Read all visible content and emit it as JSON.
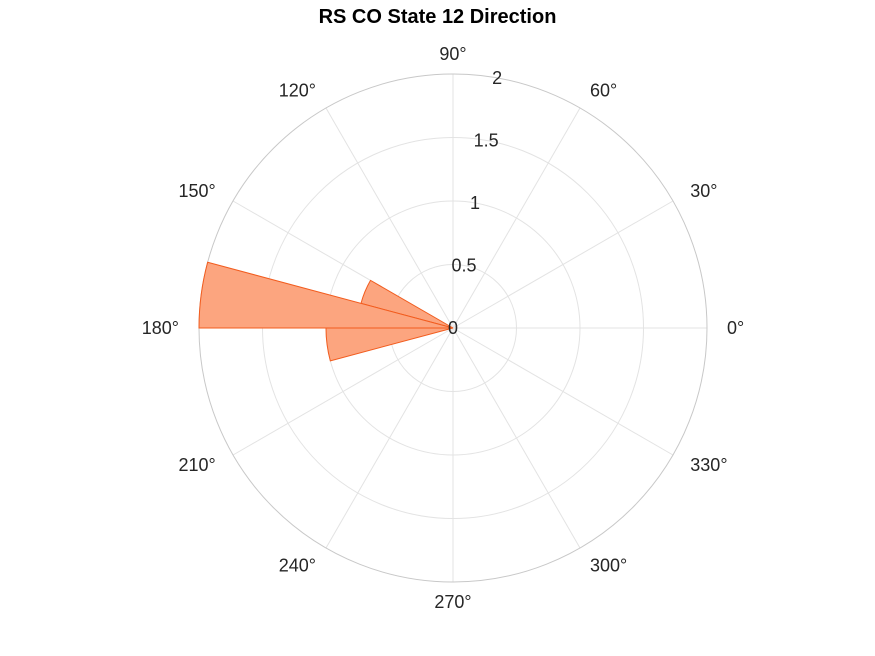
{
  "chart_data": {
    "type": "polar-histogram",
    "title": "RS  CO State 12 Direction",
    "rlim": [
      0,
      2
    ],
    "r_ticks": [
      0,
      0.5,
      1,
      1.5,
      2
    ],
    "r_tick_labels": [
      "0",
      "0.5",
      "1",
      "1.5",
      "2"
    ],
    "theta_ticks": [
      0,
      30,
      60,
      90,
      120,
      150,
      180,
      210,
      240,
      270,
      300,
      330
    ],
    "theta_tick_labels": [
      "0°",
      "30°",
      "60°",
      "90°",
      "120°",
      "150°",
      "180°",
      "210°",
      "240°",
      "270°",
      "300°",
      "330°"
    ],
    "grid": true,
    "bin_width_deg": 15,
    "bins": [
      {
        "start_deg": 150,
        "end_deg": 165,
        "value": 0.75
      },
      {
        "start_deg": 165,
        "end_deg": 180,
        "value": 2
      },
      {
        "start_deg": 180,
        "end_deg": 195,
        "value": 1
      }
    ],
    "colors": {
      "fill": "#fca57f",
      "edge": "#f25c1e",
      "grid": "#e3e3e3",
      "outer_ring": "#c8c8c8"
    }
  }
}
